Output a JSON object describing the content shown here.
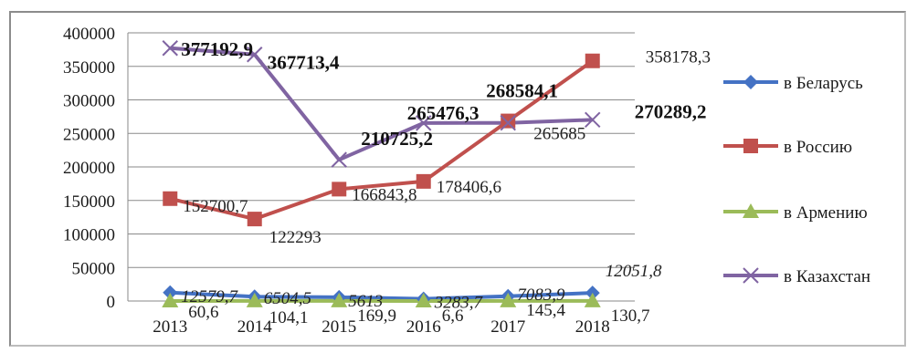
{
  "chart_data": {
    "type": "line",
    "categories": [
      "2013",
      "2014",
      "2015",
      "2016",
      "2017",
      "2018"
    ],
    "ylim": [
      0,
      400000
    ],
    "yticks": [
      "0",
      "50000",
      "100000",
      "150000",
      "200000",
      "250000",
      "300000",
      "350000",
      "400000"
    ],
    "grid": true,
    "legend_position": "right",
    "series": [
      {
        "name": "в Беларусь",
        "color": "#4472c4",
        "marker": "diamond",
        "values": [
          12579.7,
          6504.5,
          5613,
          3283.7,
          7083.9,
          12051.8
        ],
        "labels": [
          "12579,7",
          "6504,5",
          "5613",
          "3283,7",
          "7083,9",
          "12051,8"
        ],
        "label_style": "italic"
      },
      {
        "name": "в Россию",
        "color": "#c0504d",
        "marker": "square",
        "values": [
          152700.7,
          122293,
          166843.8,
          178406.6,
          268584.1,
          358178.3
        ],
        "labels": [
          "152700,7",
          "122293",
          "166843,8",
          "178406,6",
          "268584,1",
          "358178,3"
        ],
        "label_style": "mixed"
      },
      {
        "name": "в Армению",
        "color": "#9bbb59",
        "marker": "triangle",
        "values": [
          60.6,
          104.1,
          169.9,
          6.6,
          145.4,
          130.7
        ],
        "labels": [
          "60,6",
          "104,1",
          "169,9",
          "6,6",
          "145,4",
          "130,7"
        ],
        "label_style": "normal"
      },
      {
        "name": "в Казахстан",
        "color": "#8064a2",
        "marker": "x",
        "values": [
          377192.9,
          367713.4,
          210725.2,
          265476.3,
          265685,
          270289.2
        ],
        "labels": [
          "377192,9",
          "367713,4",
          "210725,2",
          "265476,3",
          "265685",
          "270289,2"
        ],
        "label_style": "mixed"
      }
    ]
  }
}
